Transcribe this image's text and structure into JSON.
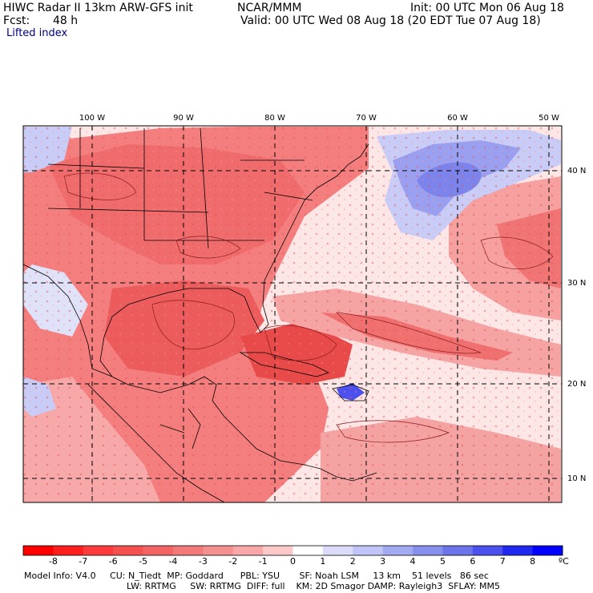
{
  "header": {
    "model": "HIWC Radar II 13km ARW-GFS init",
    "org": "NCAR/MMM",
    "init": "Init: 00 UTC Mon 06 Aug 18",
    "fcst_label": "Fcst:",
    "fcst_value": "48 h",
    "valid": "Valid: 00 UTC Wed 08 Aug 18 (20 EDT Tue 07 Aug 18)",
    "field": "Lifted index"
  },
  "map": {
    "longitude_labels": [
      "100 W",
      "90 W",
      "80 W",
      "70 W",
      "60 W",
      "50 W"
    ],
    "latitude_labels": [
      "40 N",
      "30 N",
      "20 N",
      "10 N"
    ],
    "colors": {
      "strong_unstable": "#e84a4a",
      "unstable": "#f47e7e",
      "weak_unstable": "#f8b6b6",
      "neutral": "#fde6e6",
      "weak_stable": "#c8ccf6",
      "stable": "#7c84ec",
      "land_border": "#000000",
      "contour": "#8b1a1a"
    }
  },
  "colorbar": {
    "ticks": [
      "-8",
      "-7",
      "-6",
      "-5",
      "-4",
      "-3",
      "-2",
      "-1",
      "0",
      "1",
      "2",
      "3",
      "4",
      "5",
      "6",
      "7",
      "8"
    ],
    "unit": "ºC",
    "colors": [
      "#ff0000",
      "#ff1e1e",
      "#ff3a3a",
      "#f75050",
      "#f46464",
      "#f47a7a",
      "#f59090",
      "#f8a8a8",
      "#fcc8c8",
      "#ffffff",
      "#dcdcfa",
      "#c0c4f6",
      "#a4aaf2",
      "#8890ee",
      "#6c74ea",
      "#4c50ec",
      "#2028f0",
      "#0000ff"
    ]
  },
  "footer": {
    "line1": "Model Info: V4.0     CU: N_Tiedt  MP: Goddard      PBL: YSU       SF: Noah LSM     13 km    51 levels   86 sec",
    "line2": "LW: RRTMG     SW: RRTMG  DIFF: full    KM: 2D Smagor DAMP: Rayleigh3  SFLAY: MM5"
  }
}
